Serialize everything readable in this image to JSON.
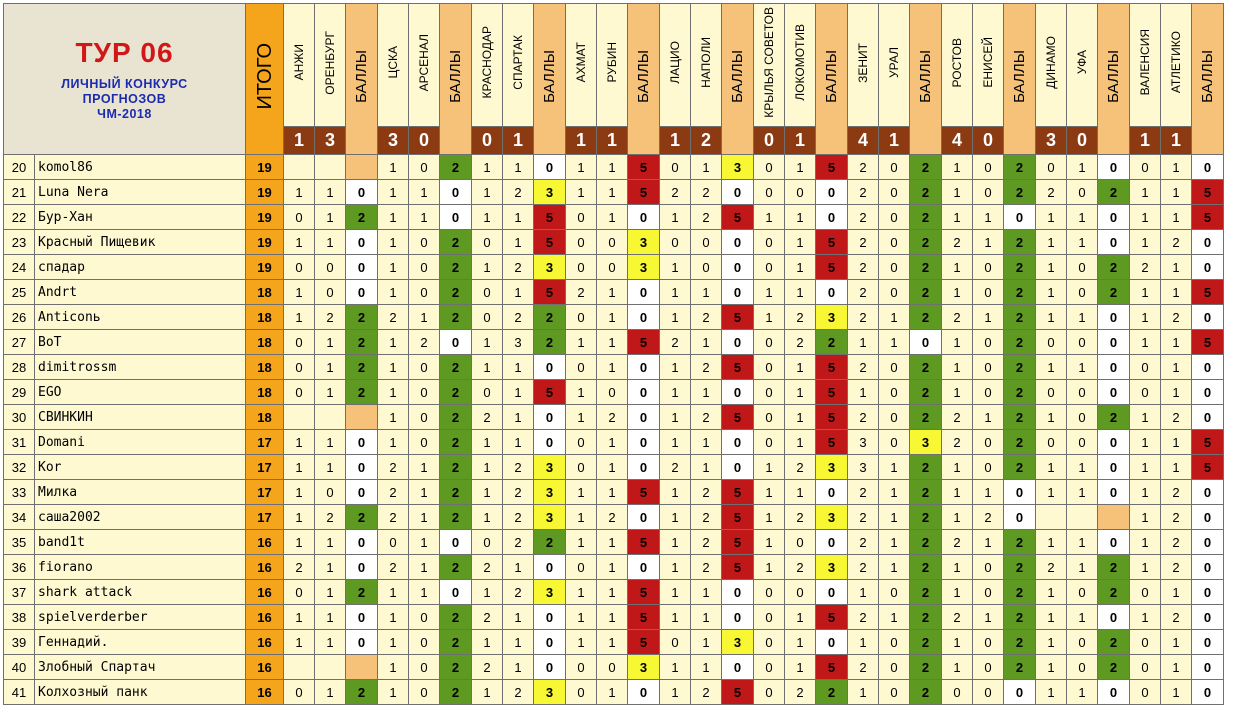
{
  "title": {
    "tour": "ТУР 06",
    "line1": "ЛИЧНЫЙ КОНКУРС",
    "line2": "ПРОГНОЗОВ",
    "line3": "ЧМ-2018"
  },
  "itogo_label": "ИТОГО",
  "bally_label": "БАЛЛЫ",
  "colors": {
    "score_points_0": "#ffffff",
    "score_points_2": "#5e9a21",
    "score_points_3": "#f7f733",
    "score_points_5": "#c01818",
    "total_bg": "#f4a51c",
    "cell_bg": "#fff9d2",
    "score_bg": "#8b3a11"
  },
  "matches": [
    {
      "home": "АНЖИ",
      "away": "ОРЕНБУРГ",
      "home_goals": "1",
      "away_goals": "3"
    },
    {
      "home": "ЦСКА",
      "away": "АРСЕНАЛ",
      "home_goals": "3",
      "away_goals": "0"
    },
    {
      "home": "КРАСНОДАР",
      "away": "СПАРТАК",
      "home_goals": "0",
      "away_goals": "1"
    },
    {
      "home": "АХМАТ",
      "away": "РУБИН",
      "home_goals": "1",
      "away_goals": "1"
    },
    {
      "home": "ЛАЦИО",
      "away": "НАПОЛИ",
      "home_goals": "1",
      "away_goals": "2"
    },
    {
      "home": "КРЫЛЬЯ СОВЕТОВ",
      "away": "ЛОКОМОТИВ",
      "home_goals": "0",
      "away_goals": "1"
    },
    {
      "home": "ЗЕНИТ",
      "away": "УРАЛ",
      "home_goals": "4",
      "away_goals": "1"
    },
    {
      "home": "РОСТОВ",
      "away": "ЕНИСЕЙ",
      "home_goals": "4",
      "away_goals": "0"
    },
    {
      "home": "ДИНАМО",
      "away": "УФА",
      "home_goals": "3",
      "away_goals": "0"
    },
    {
      "home": "ВАЛЕНСИЯ",
      "away": "АТЛЕТИКО",
      "home_goals": "1",
      "away_goals": "1"
    }
  ],
  "rows": [
    {
      "num": "20",
      "name": "komol86",
      "total": "19",
      "preds": [
        [
          "",
          "",
          ""
        ],
        [
          "1",
          "0",
          "2"
        ],
        [
          "1",
          "1",
          "0"
        ],
        [
          "1",
          "1",
          "5"
        ],
        [
          "0",
          "1",
          "3"
        ],
        [
          "0",
          "1",
          "5"
        ],
        [
          "2",
          "0",
          "2"
        ],
        [
          "1",
          "0",
          "2"
        ],
        [
          "0",
          "1",
          "0"
        ],
        [
          "0",
          "1",
          "0"
        ]
      ]
    },
    {
      "num": "21",
      "name": "Luna Nera",
      "total": "19",
      "preds": [
        [
          "1",
          "1",
          "0"
        ],
        [
          "1",
          "1",
          "0"
        ],
        [
          "1",
          "2",
          "3"
        ],
        [
          "1",
          "1",
          "5"
        ],
        [
          "2",
          "2",
          "0"
        ],
        [
          "0",
          "0",
          "0"
        ],
        [
          "2",
          "0",
          "2"
        ],
        [
          "1",
          "0",
          "2"
        ],
        [
          "2",
          "0",
          "2"
        ],
        [
          "1",
          "1",
          "5"
        ]
      ]
    },
    {
      "num": "22",
      "name": "Бур-Хан",
      "total": "19",
      "preds": [
        [
          "0",
          "1",
          "2"
        ],
        [
          "1",
          "1",
          "0"
        ],
        [
          "1",
          "1",
          "5"
        ],
        [
          "0",
          "1",
          "0"
        ],
        [
          "1",
          "2",
          "5"
        ],
        [
          "1",
          "1",
          "0"
        ],
        [
          "2",
          "0",
          "2"
        ],
        [
          "1",
          "1",
          "0"
        ],
        [
          "1",
          "1",
          "0"
        ],
        [
          "1",
          "1",
          "5"
        ]
      ]
    },
    {
      "num": "23",
      "name": "Красный Пищевик",
      "total": "19",
      "preds": [
        [
          "1",
          "1",
          "0"
        ],
        [
          "1",
          "0",
          "2"
        ],
        [
          "0",
          "1",
          "5"
        ],
        [
          "0",
          "0",
          "3"
        ],
        [
          "0",
          "0",
          "0"
        ],
        [
          "0",
          "1",
          "5"
        ],
        [
          "2",
          "0",
          "2"
        ],
        [
          "2",
          "1",
          "2"
        ],
        [
          "1",
          "1",
          "0"
        ],
        [
          "1",
          "2",
          "0"
        ]
      ]
    },
    {
      "num": "24",
      "name": "спадар",
      "total": "19",
      "preds": [
        [
          "0",
          "0",
          "0"
        ],
        [
          "1",
          "0",
          "2"
        ],
        [
          "1",
          "2",
          "3"
        ],
        [
          "0",
          "0",
          "3"
        ],
        [
          "1",
          "0",
          "0"
        ],
        [
          "0",
          "1",
          "5"
        ],
        [
          "2",
          "0",
          "2"
        ],
        [
          "1",
          "0",
          "2"
        ],
        [
          "1",
          "0",
          "2"
        ],
        [
          "2",
          "1",
          "0"
        ]
      ]
    },
    {
      "num": "25",
      "name": "Andrt",
      "total": "18",
      "preds": [
        [
          "1",
          "0",
          "0"
        ],
        [
          "1",
          "0",
          "2"
        ],
        [
          "0",
          "1",
          "5"
        ],
        [
          "2",
          "1",
          "0"
        ],
        [
          "1",
          "1",
          "0"
        ],
        [
          "1",
          "1",
          "0"
        ],
        [
          "2",
          "0",
          "2"
        ],
        [
          "1",
          "0",
          "2"
        ],
        [
          "1",
          "0",
          "2"
        ],
        [
          "1",
          "1",
          "5"
        ]
      ]
    },
    {
      "num": "26",
      "name": "Anticonь",
      "total": "18",
      "preds": [
        [
          "1",
          "2",
          "2"
        ],
        [
          "2",
          "1",
          "2"
        ],
        [
          "0",
          "2",
          "2"
        ],
        [
          "0",
          "1",
          "0"
        ],
        [
          "1",
          "2",
          "5"
        ],
        [
          "1",
          "2",
          "3"
        ],
        [
          "2",
          "1",
          "2"
        ],
        [
          "2",
          "1",
          "2"
        ],
        [
          "1",
          "1",
          "0"
        ],
        [
          "1",
          "2",
          "0"
        ]
      ]
    },
    {
      "num": "27",
      "name": "BoT",
      "total": "18",
      "preds": [
        [
          "0",
          "1",
          "2"
        ],
        [
          "1",
          "2",
          "0"
        ],
        [
          "1",
          "3",
          "2"
        ],
        [
          "1",
          "1",
          "5"
        ],
        [
          "2",
          "1",
          "0"
        ],
        [
          "0",
          "2",
          "2"
        ],
        [
          "1",
          "1",
          "0"
        ],
        [
          "1",
          "0",
          "2"
        ],
        [
          "0",
          "0",
          "0"
        ],
        [
          "1",
          "1",
          "5"
        ]
      ]
    },
    {
      "num": "28",
      "name": "dimitrossm",
      "total": "18",
      "preds": [
        [
          "0",
          "1",
          "2"
        ],
        [
          "1",
          "0",
          "2"
        ],
        [
          "1",
          "1",
          "0"
        ],
        [
          "0",
          "1",
          "0"
        ],
        [
          "1",
          "2",
          "5"
        ],
        [
          "0",
          "1",
          "5"
        ],
        [
          "2",
          "0",
          "2"
        ],
        [
          "1",
          "0",
          "2"
        ],
        [
          "1",
          "1",
          "0"
        ],
        [
          "0",
          "1",
          "0"
        ]
      ]
    },
    {
      "num": "29",
      "name": "EGO",
      "total": "18",
      "preds": [
        [
          "0",
          "1",
          "2"
        ],
        [
          "1",
          "0",
          "2"
        ],
        [
          "0",
          "1",
          "5"
        ],
        [
          "1",
          "0",
          "0"
        ],
        [
          "1",
          "1",
          "0"
        ],
        [
          "0",
          "1",
          "5"
        ],
        [
          "1",
          "0",
          "2"
        ],
        [
          "1",
          "0",
          "2"
        ],
        [
          "0",
          "0",
          "0"
        ],
        [
          "0",
          "1",
          "0"
        ]
      ]
    },
    {
      "num": "30",
      "name": "СВИНКИН",
      "total": "18",
      "preds": [
        [
          "",
          "",
          ""
        ],
        [
          "1",
          "0",
          "2"
        ],
        [
          "2",
          "1",
          "0"
        ],
        [
          "1",
          "2",
          "0"
        ],
        [
          "1",
          "2",
          "5"
        ],
        [
          "0",
          "1",
          "5"
        ],
        [
          "2",
          "0",
          "2"
        ],
        [
          "2",
          "1",
          "2"
        ],
        [
          "1",
          "0",
          "2"
        ],
        [
          "1",
          "2",
          "0"
        ]
      ]
    },
    {
      "num": "31",
      "name": "Domani",
      "total": "17",
      "preds": [
        [
          "1",
          "1",
          "0"
        ],
        [
          "1",
          "0",
          "2"
        ],
        [
          "1",
          "1",
          "0"
        ],
        [
          "0",
          "1",
          "0"
        ],
        [
          "1",
          "1",
          "0"
        ],
        [
          "0",
          "1",
          "5"
        ],
        [
          "3",
          "0",
          "3"
        ],
        [
          "2",
          "0",
          "2"
        ],
        [
          "0",
          "0",
          "0"
        ],
        [
          "1",
          "1",
          "5"
        ]
      ]
    },
    {
      "num": "32",
      "name": "Kor",
      "total": "17",
      "preds": [
        [
          "1",
          "1",
          "0"
        ],
        [
          "2",
          "1",
          "2"
        ],
        [
          "1",
          "2",
          "3"
        ],
        [
          "0",
          "1",
          "0"
        ],
        [
          "2",
          "1",
          "0"
        ],
        [
          "1",
          "2",
          "3"
        ],
        [
          "3",
          "1",
          "2"
        ],
        [
          "1",
          "0",
          "2"
        ],
        [
          "1",
          "1",
          "0"
        ],
        [
          "1",
          "1",
          "5"
        ]
      ]
    },
    {
      "num": "33",
      "name": "Милка",
      "total": "17",
      "preds": [
        [
          "1",
          "0",
          "0"
        ],
        [
          "2",
          "1",
          "2"
        ],
        [
          "1",
          "2",
          "3"
        ],
        [
          "1",
          "1",
          "5"
        ],
        [
          "1",
          "2",
          "5"
        ],
        [
          "1",
          "1",
          "0"
        ],
        [
          "2",
          "1",
          "2"
        ],
        [
          "1",
          "1",
          "0"
        ],
        [
          "1",
          "1",
          "0"
        ],
        [
          "1",
          "2",
          "0"
        ]
      ]
    },
    {
      "num": "34",
      "name": "саша2002",
      "total": "17",
      "preds": [
        [
          "1",
          "2",
          "2"
        ],
        [
          "2",
          "1",
          "2"
        ],
        [
          "1",
          "2",
          "3"
        ],
        [
          "1",
          "2",
          "0"
        ],
        [
          "1",
          "2",
          "5"
        ],
        [
          "1",
          "2",
          "3"
        ],
        [
          "2",
          "1",
          "2"
        ],
        [
          "1",
          "2",
          "0"
        ],
        [
          "",
          "",
          ""
        ],
        [
          "1",
          "2",
          "0"
        ]
      ]
    },
    {
      "num": "35",
      "name": "band1t",
      "total": "16",
      "preds": [
        [
          "1",
          "1",
          "0"
        ],
        [
          "0",
          "1",
          "0"
        ],
        [
          "0",
          "2",
          "2"
        ],
        [
          "1",
          "1",
          "5"
        ],
        [
          "1",
          "2",
          "5"
        ],
        [
          "1",
          "0",
          "0"
        ],
        [
          "2",
          "1",
          "2"
        ],
        [
          "2",
          "1",
          "2"
        ],
        [
          "1",
          "1",
          "0"
        ],
        [
          "1",
          "2",
          "0"
        ]
      ]
    },
    {
      "num": "36",
      "name": "fiorano",
      "total": "16",
      "preds": [
        [
          "2",
          "1",
          "0"
        ],
        [
          "2",
          "1",
          "2"
        ],
        [
          "2",
          "1",
          "0"
        ],
        [
          "0",
          "1",
          "0"
        ],
        [
          "1",
          "2",
          "5"
        ],
        [
          "1",
          "2",
          "3"
        ],
        [
          "2",
          "1",
          "2"
        ],
        [
          "1",
          "0",
          "2"
        ],
        [
          "2",
          "1",
          "2"
        ],
        [
          "1",
          "2",
          "0"
        ]
      ]
    },
    {
      "num": "37",
      "name": "shark attack",
      "total": "16",
      "preds": [
        [
          "0",
          "1",
          "2"
        ],
        [
          "1",
          "1",
          "0"
        ],
        [
          "1",
          "2",
          "3"
        ],
        [
          "1",
          "1",
          "5"
        ],
        [
          "1",
          "1",
          "0"
        ],
        [
          "0",
          "0",
          "0"
        ],
        [
          "1",
          "0",
          "2"
        ],
        [
          "1",
          "0",
          "2"
        ],
        [
          "1",
          "0",
          "2"
        ],
        [
          "0",
          "1",
          "0"
        ]
      ]
    },
    {
      "num": "38",
      "name": "spielverderber",
      "total": "16",
      "preds": [
        [
          "1",
          "1",
          "0"
        ],
        [
          "1",
          "0",
          "2"
        ],
        [
          "2",
          "1",
          "0"
        ],
        [
          "1",
          "1",
          "5"
        ],
        [
          "1",
          "1",
          "0"
        ],
        [
          "0",
          "1",
          "5"
        ],
        [
          "2",
          "1",
          "2"
        ],
        [
          "2",
          "1",
          "2"
        ],
        [
          "1",
          "1",
          "0"
        ],
        [
          "1",
          "2",
          "0"
        ]
      ]
    },
    {
      "num": "39",
      "name": "Геннадий.",
      "total": "16",
      "preds": [
        [
          "1",
          "1",
          "0"
        ],
        [
          "1",
          "0",
          "2"
        ],
        [
          "1",
          "1",
          "0"
        ],
        [
          "1",
          "1",
          "5"
        ],
        [
          "0",
          "1",
          "3"
        ],
        [
          "0",
          "1",
          "0"
        ],
        [
          "1",
          "0",
          "2"
        ],
        [
          "1",
          "0",
          "2"
        ],
        [
          "1",
          "0",
          "2"
        ],
        [
          "0",
          "1",
          "0"
        ]
      ]
    },
    {
      "num": "40",
      "name": "Злобный Спартач",
      "total": "16",
      "preds": [
        [
          "",
          "",
          ""
        ],
        [
          "1",
          "0",
          "2"
        ],
        [
          "2",
          "1",
          "0"
        ],
        [
          "0",
          "0",
          "3"
        ],
        [
          "1",
          "1",
          "0"
        ],
        [
          "0",
          "1",
          "5"
        ],
        [
          "2",
          "0",
          "2"
        ],
        [
          "1",
          "0",
          "2"
        ],
        [
          "1",
          "0",
          "2"
        ],
        [
          "0",
          "1",
          "0"
        ]
      ]
    },
    {
      "num": "41",
      "name": "Колхозный панк",
      "total": "16",
      "preds": [
        [
          "0",
          "1",
          "2"
        ],
        [
          "1",
          "0",
          "2"
        ],
        [
          "1",
          "2",
          "3"
        ],
        [
          "0",
          "1",
          "0"
        ],
        [
          "1",
          "2",
          "5"
        ],
        [
          "0",
          "2",
          "2"
        ],
        [
          "1",
          "0",
          "2"
        ],
        [
          "0",
          "0",
          "0"
        ],
        [
          "1",
          "1",
          "0"
        ],
        [
          "0",
          "1",
          "0"
        ]
      ]
    }
  ]
}
